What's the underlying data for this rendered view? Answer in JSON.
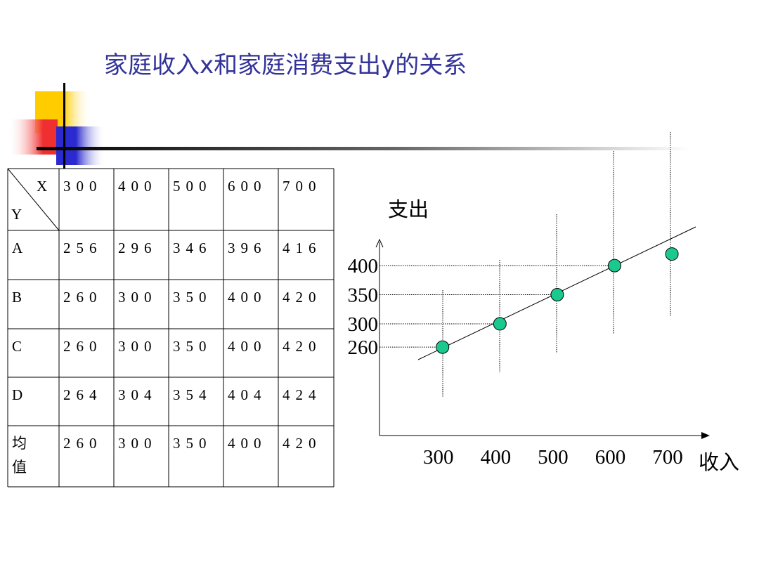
{
  "title": "家庭收入x和家庭消费支出y的关系",
  "table": {
    "corner_x": "X",
    "corner_y": "Y",
    "columns": [
      "300",
      "400",
      "500",
      "600",
      "700"
    ],
    "rows": [
      [
        "A",
        "256",
        "296",
        "346",
        "396",
        "416"
      ],
      [
        "B",
        "260",
        "300",
        "350",
        "400",
        "420"
      ],
      [
        "C",
        "260",
        "300",
        "350",
        "400",
        "420"
      ],
      [
        "D",
        "264",
        "304",
        "354",
        "404",
        "424"
      ],
      [
        "均值",
        "260",
        "300",
        "350",
        "400",
        "420"
      ]
    ]
  },
  "chart_data": {
    "type": "scatter",
    "xlabel": "收入",
    "ylabel": "支出",
    "x": [
      300,
      400,
      500,
      600,
      700
    ],
    "values": [
      260,
      300,
      350,
      400,
      420
    ],
    "color": "#1bc98e",
    "xlim": [
      190,
      760
    ],
    "ylim": [
      108,
      440
    ],
    "xticks": [
      300,
      400,
      500,
      600,
      700
    ],
    "yticks": [
      260,
      300,
      350,
      400
    ]
  }
}
